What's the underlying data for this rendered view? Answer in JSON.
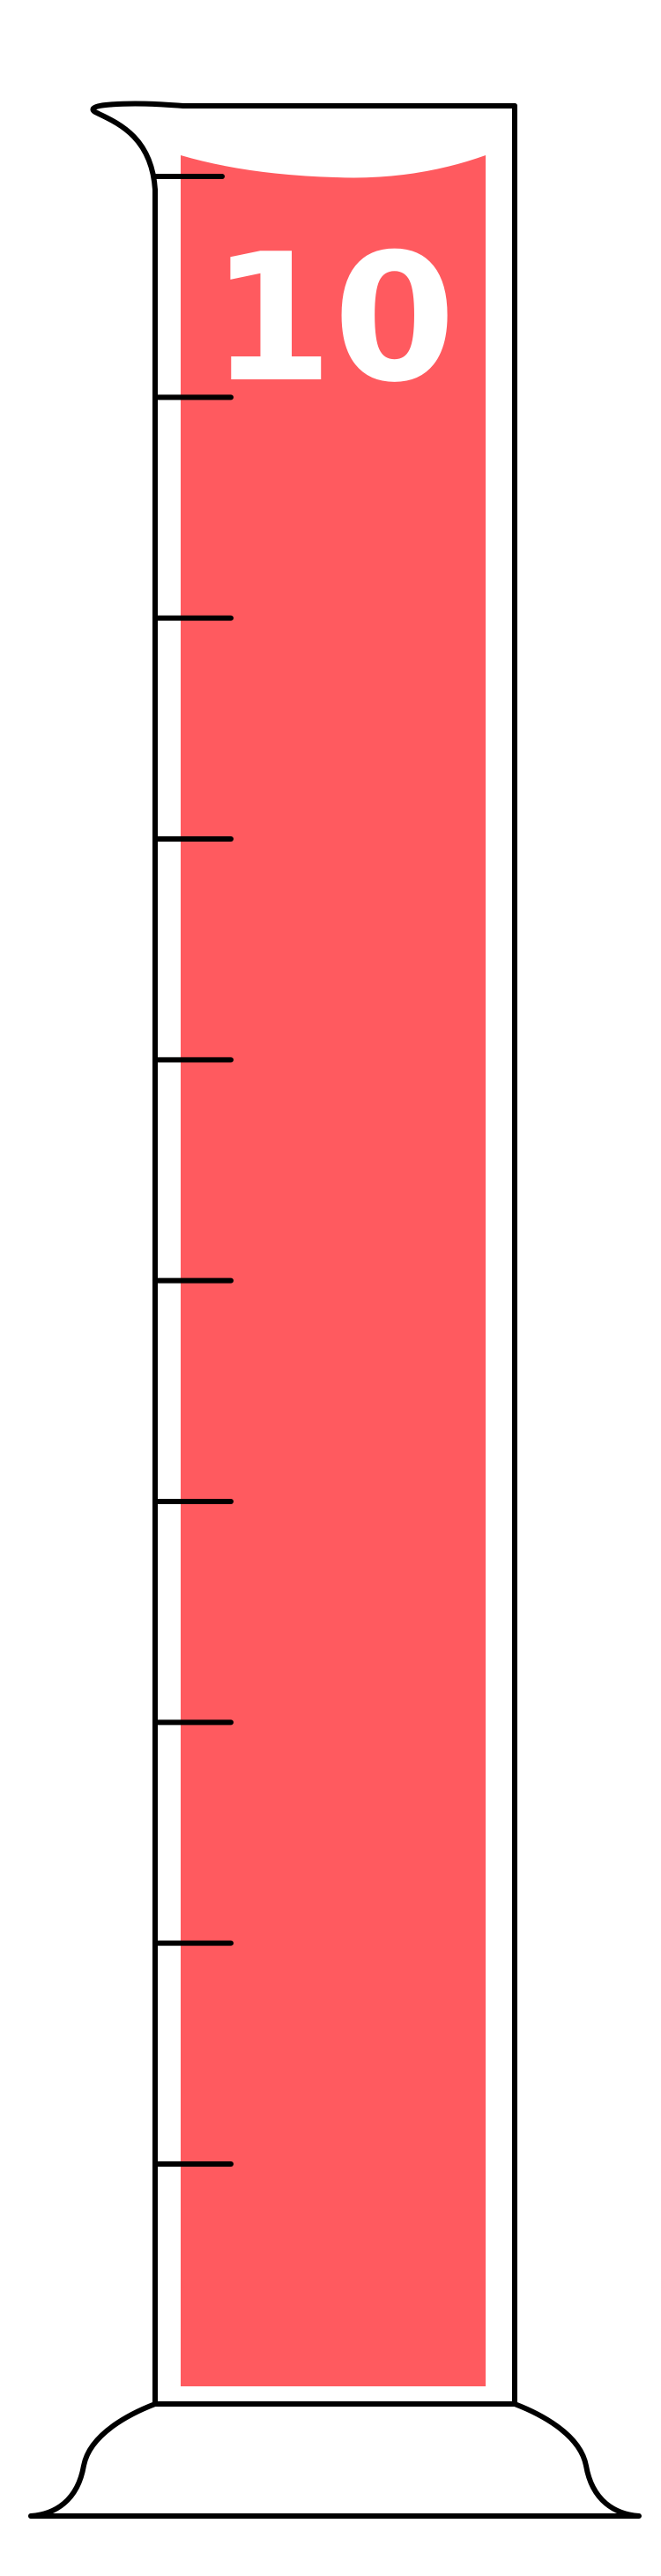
{
  "cylinder": {
    "fill_level_label": "10",
    "fill_fraction": 1.0,
    "tick_count": 10,
    "colors": {
      "liquid": "#ff5a5f",
      "outline": "#000000",
      "glass": "#ffffff",
      "label": "#ffffff"
    }
  }
}
